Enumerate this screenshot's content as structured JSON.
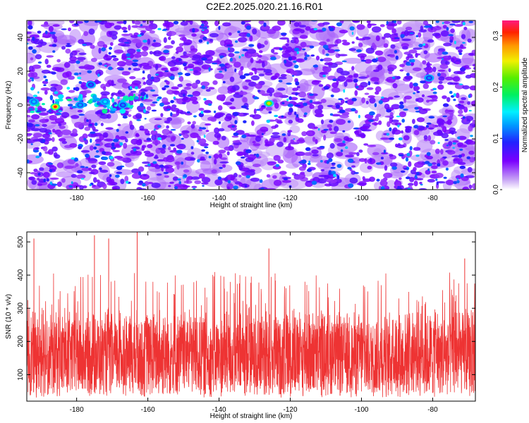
{
  "page": {
    "title": "C2E2.2025.020.21.16.R01"
  },
  "chart_data": [
    {
      "type": "heatmap",
      "title": "C2E2.2025.020.21.16.R01",
      "xlabel": "Height of straight line (km)",
      "ylabel": "Frequency (Hz)",
      "xlim": [
        -194,
        -68
      ],
      "ylim": [
        -50,
        50
      ],
      "xticks": [
        -180,
        -160,
        -140,
        -120,
        -100,
        -80
      ],
      "yticks": [
        -40,
        -20,
        0,
        20,
        40
      ],
      "grid": false,
      "colorbar": {
        "label": "Normalized spectral amplitude",
        "range": [
          0.0,
          0.33
        ],
        "ticks": [
          0.0,
          0.1,
          0.2,
          0.3
        ],
        "colormap": "rainbow (white-purple-blue-cyan-green-yellow-orange-red-magenta)"
      },
      "features": [
        {
          "x": -186,
          "y": -1,
          "value": 0.31,
          "label": "peak"
        },
        {
          "x": -126,
          "y": 1,
          "value": 0.26,
          "label": "peak"
        },
        {
          "x": -192,
          "y": 2,
          "value": 0.14
        },
        {
          "x": -179,
          "y": 0,
          "value": 0.13
        },
        {
          "x": -172,
          "y": 2,
          "value": 0.15
        },
        {
          "x": -167,
          "y": 0,
          "value": 0.12
        },
        {
          "x": -176,
          "y": 12,
          "value": 0.11
        },
        {
          "x": -81,
          "y": 16,
          "value": 0.12
        }
      ]
    },
    {
      "type": "line",
      "xlabel": "Height of straight line (km)",
      "ylabel": "SNR (10 * v/v)",
      "xlim": [
        -194,
        -68
      ],
      "ylim": [
        20,
        530
      ],
      "xticks": [
        -180,
        -160,
        -140,
        -120,
        -100,
        -80
      ],
      "yticks": [
        100,
        200,
        300,
        400,
        500
      ],
      "grid": false,
      "series": [
        {
          "color": "#ee3333",
          "peaks": [
            {
              "x": -192,
              "y": 510
            },
            {
              "x": -175,
              "y": 520
            },
            {
              "x": -171,
              "y": 510
            },
            {
              "x": -163,
              "y": 530
            },
            {
              "x": -126,
              "y": 480
            },
            {
              "x": -71,
              "y": 450
            }
          ],
          "typical_range": [
            60,
            280
          ],
          "typical_level": 150
        }
      ]
    }
  ]
}
